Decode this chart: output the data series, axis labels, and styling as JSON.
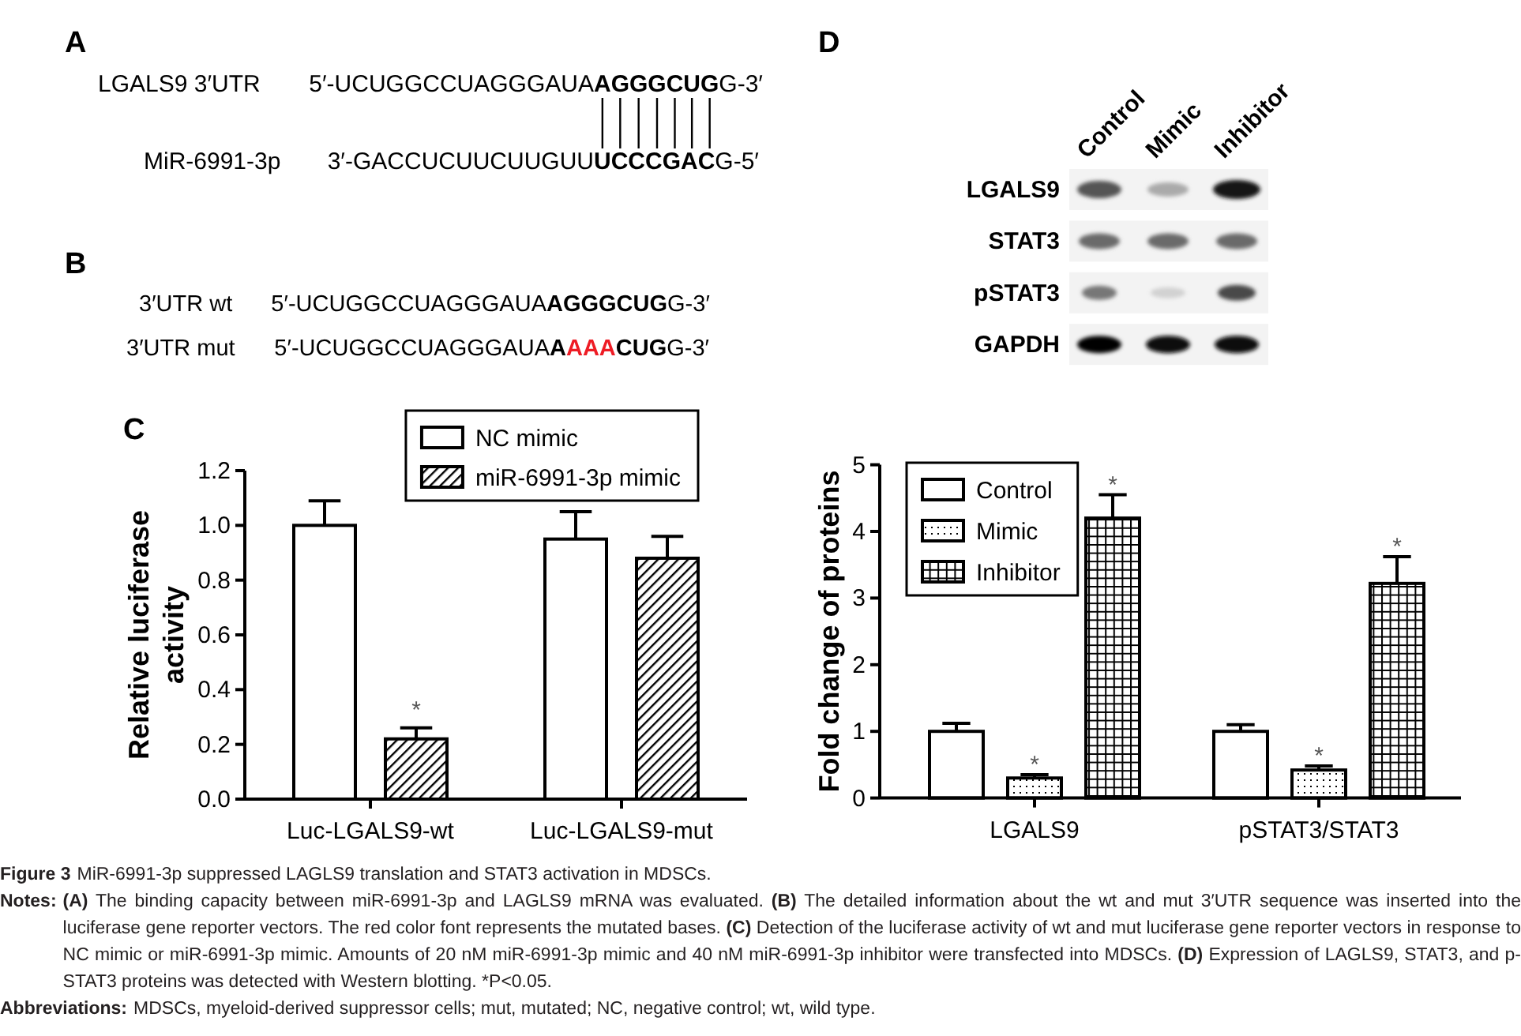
{
  "chart_data": [
    {
      "type": "other",
      "title": "A",
      "annotations": [
        "LGALS9 3′UTR",
        "5′-UCUGGCCUAGGGAUA",
        "AGGGCUG",
        "G-3′",
        "MiR-6991-3p",
        "3′-GACCUCUUCUUGUU",
        "UCCCGAC",
        "G-5′"
      ]
    },
    {
      "type": "other",
      "title": "B",
      "annotations": [
        "3′UTR wt",
        "5′-UCUGGCCUAGGGAUA",
        "AGGGCUG",
        "G-3′",
        "3′UTR mut",
        "5′-UCUGGCCUAGGGAUA",
        "A",
        "AAA",
        "CUG",
        "G-3′"
      ]
    },
    {
      "type": "bar",
      "title": "C",
      "categories": [
        "Luc-LGALS9-wt",
        "Luc-LGALS9-mut"
      ],
      "ylabel": "Relative luciferase activity",
      "series": [
        {
          "name": "NC mimic",
          "color": "#ffffff",
          "values": [
            1.0,
            0.95
          ],
          "errors": [
            [
              1.0,
              1.09
            ],
            [
              0.95,
              1.05
            ]
          ]
        },
        {
          "name": "miR-6991-3p mimic",
          "color": "#000000",
          "values": [
            0.22,
            0.88
          ],
          "errors": [
            [
              0.22,
              0.26
            ],
            [
              0.88,
              0.96
            ]
          ]
        }
      ],
      "ylim": [
        0,
        1.2
      ],
      "yticks": [
        {
          "value": 0,
          "label": "0.0"
        },
        0.2,
        0.4,
        0.6,
        0.8,
        {
          "value": 1,
          "label": "1.0"
        },
        1.2
      ],
      "legend": "top right",
      "annotations": [
        "*"
      ]
    },
    {
      "type": "other",
      "title": "D",
      "categories": [
        "Control",
        "Mimic",
        "Inhibitor"
      ],
      "y_categories": [
        "LGALS9",
        "STAT3",
        "pSTAT3",
        "GAPDH"
      ]
    },
    {
      "type": "bar",
      "categories": [
        "LGALS9",
        "pSTAT3/STAT3"
      ],
      "ylabel": "Fold change of proteins",
      "series": [
        {
          "name": "Control",
          "color": "#ffffff",
          "values": [
            1.0,
            1.0
          ],
          "errors": [
            [
              1.0,
              1.12
            ],
            [
              1.0,
              1.1
            ]
          ]
        },
        {
          "name": "Mimic",
          "color": "#000000",
          "values": [
            0.3,
            0.42
          ],
          "errors": [
            [
              0.3,
              0.35
            ],
            [
              0.42,
              0.48
            ]
          ]
        },
        {
          "name": "Inhibitor",
          "color": "#000000",
          "values": [
            4.2,
            3.22
          ],
          "errors": [
            [
              4.2,
              4.55
            ],
            [
              3.22,
              3.62
            ]
          ]
        }
      ],
      "ylim": [
        0,
        5
      ],
      "yticks": [
        0,
        1,
        2,
        3,
        4,
        5
      ],
      "legend": "top left",
      "annotations": [
        "*",
        "*",
        "*",
        "*"
      ]
    },
    {
      "type": "other",
      "annotations": [
        "Figure 3",
        "MiR-6991-3p suppressed LAGLS9 translation and STAT3 activation in MDSCs.",
        "Notes:",
        "(A) The binding capacity between miR-6991-3p and LAGLS9 mRNA was evaluated. (B) The detailed information about the wt and mut 3′UTR sequence was inserted into the luciferase gene reporter vectors. The red color font represents the mutated bases. (C) Detection of the luciferase activity of wt and mut luciferase gene reporter vectors in response to NC mimic or miR-6991-3p mimic. Amounts of 20 nM miR-6991-3p mimic and 40 nM miR-6991-3p inhibitor were transfected into MDSCs. (D) Expression of LAGLS9, STAT3, and p-STAT3 proteins was detected with Western blotting. *P<0.05.",
        "Abbreviations:",
        "MDSCs, myeloid-derived suppressor cells; mut, mutated; NC, negative control; wt, wild type."
      ]
    }
  ]
}
